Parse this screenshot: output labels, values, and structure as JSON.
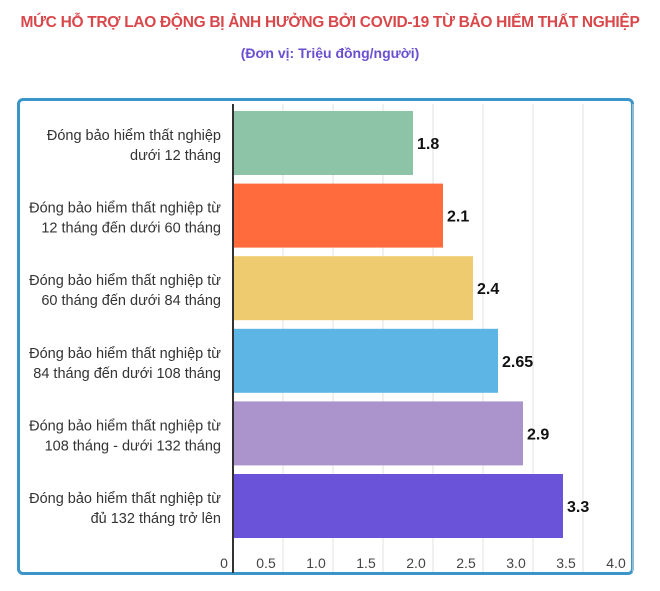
{
  "chart_data": {
    "type": "bar",
    "orientation": "horizontal",
    "title": "MỨC HỖ TRỢ LAO ĐỘNG BỊ ẢNH HƯỞNG BỞI COVID-19 TỪ BẢO HIỂM THẤT NGHIỆP",
    "subtitle": "(Đơn vị: Triệu đồng/người)",
    "categories": [
      [
        "Đóng bảo hiểm thất nghiệp",
        "dưới 12 tháng"
      ],
      [
        "Đóng bảo hiểm thất nghiệp từ",
        "12 tháng đến dưới 60 tháng"
      ],
      [
        "Đóng bảo hiểm thất nghiệp từ",
        "60 tháng đến dưới 84 tháng"
      ],
      [
        "Đóng bảo hiểm thất nghiệp từ",
        "84 tháng đến dưới 108 tháng"
      ],
      [
        "Đóng bảo hiểm thất nghiệp từ",
        "108 tháng - dưới 132 tháng"
      ],
      [
        "Đóng bảo hiểm thất nghiệp từ",
        "đủ 132 tháng trở lên"
      ]
    ],
    "values": [
      1.8,
      2.1,
      2.4,
      2.65,
      2.9,
      3.3
    ],
    "data_labels": [
      "1.8",
      "2.1",
      "2.4",
      "2.65",
      "2.9",
      "3.3"
    ],
    "colors": [
      "#8dc3a7",
      "#ff6b3d",
      "#eecb6e",
      "#5db5e6",
      "#ab94cb",
      "#6a52d9"
    ],
    "xlim": [
      0,
      4.0
    ],
    "x_ticks": [
      "0",
      "0.5",
      "1.0",
      "1.5",
      "2.0",
      "2.5",
      "3.0",
      "3.5",
      "4.0"
    ],
    "grid": true,
    "frame_color": "#3a96c8",
    "title_color": "#d9474a",
    "subtitle_color": "#6a4fd0"
  }
}
